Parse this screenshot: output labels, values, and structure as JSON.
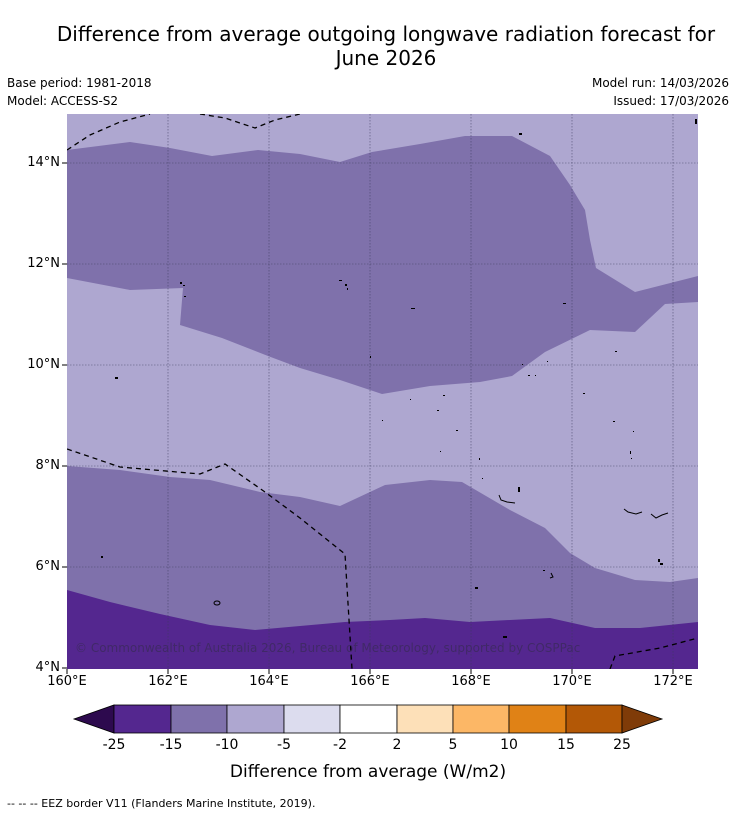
{
  "title_line1": "Difference from average outgoing longwave radiation forecast for",
  "title_line2": "June 2026",
  "meta": {
    "base_period": "Base period: 1981-2018",
    "model": "Model: ACCESS-S2",
    "model_run": "Model run: 14/03/2026",
    "issued": "Issued: 17/03/2026"
  },
  "copyright": "© Commonwealth of Australia 2026, Bureau of Meteorology, supported by COSPPac",
  "axes": {
    "lat_ticks": [
      "14°N",
      "12°N",
      "10°N",
      "8°N",
      "6°N",
      "4°N"
    ],
    "lon_ticks": [
      "160°E",
      "162°E",
      "164°E",
      "166°E",
      "168°E",
      "170°E",
      "172°E"
    ]
  },
  "legend": {
    "title": "Difference from average (W/m2)",
    "labels": [
      "-25",
      "-15",
      "-10",
      "-5",
      "-2",
      "2",
      "5",
      "10",
      "15",
      "25"
    ],
    "colors": [
      "#2d0a4e",
      "#54278f",
      "#7f71ab",
      "#aea7d0",
      "#dcdcee",
      "#ffffff",
      "#fde0b8",
      "#fcb766",
      "#e08216",
      "#b35806",
      "#7f3b08"
    ]
  },
  "footnote": "--  --  -- EEZ border V11 (Flanders Marine Institute, 2019)."
}
